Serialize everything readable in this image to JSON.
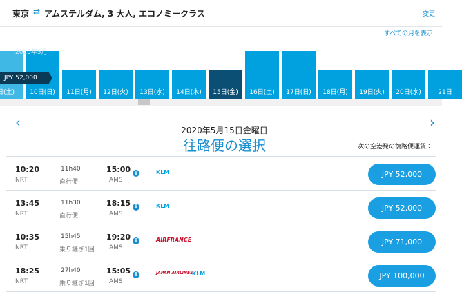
{
  "header": {
    "origin": "東京",
    "summary": "アムステルダム, 3 大人, エコノミークラス",
    "change": "変更"
  },
  "calendar": {
    "show_all_months": "すべての月を表示",
    "month_label": "2020年5月",
    "tooltip": "JPY 52,000",
    "days": [
      {
        "label": "日(土)",
        "tall": true,
        "selected": false
      },
      {
        "label": "10日(日)",
        "tall": true,
        "selected": false
      },
      {
        "label": "11日(月)",
        "tall": false,
        "selected": false
      },
      {
        "label": "12日(火)",
        "tall": false,
        "selected": false
      },
      {
        "label": "13日(水)",
        "tall": false,
        "selected": false
      },
      {
        "label": "14日(木)",
        "tall": false,
        "selected": false
      },
      {
        "label": "15日(金)",
        "tall": false,
        "selected": true
      },
      {
        "label": "16日(土)",
        "tall": true,
        "selected": false
      },
      {
        "label": "17日(日)",
        "tall": true,
        "selected": false
      },
      {
        "label": "18日(月)",
        "tall": false,
        "selected": false
      },
      {
        "label": "19日(火)",
        "tall": false,
        "selected": false
      },
      {
        "label": "20日(水)",
        "tall": false,
        "selected": false
      },
      {
        "label": "21日",
        "tall": false,
        "selected": false
      }
    ]
  },
  "selection": {
    "date": "2020年5月15日金曜日",
    "title": "往路便の選択",
    "note": "次の空港発の復路便運賃："
  },
  "flights": [
    {
      "dep_time": "10:20",
      "dep_airport": "NRT",
      "duration": "11h40",
      "stops": "直行便",
      "arr_time": "15:00",
      "arr_airport": "AMS",
      "airlines": [
        "KLM"
      ],
      "price": "JPY 52,000"
    },
    {
      "dep_time": "13:45",
      "dep_airport": "NRT",
      "duration": "11h30",
      "stops": "直行便",
      "arr_time": "18:15",
      "arr_airport": "AMS",
      "airlines": [
        "KLM"
      ],
      "price": "JPY 52,000"
    },
    {
      "dep_time": "10:35",
      "dep_airport": "NRT",
      "duration": "15h45",
      "stops": "乗り継ぎ1回",
      "arr_time": "19:20",
      "arr_airport": "AMS",
      "airlines": [
        "AIRFRANCE"
      ],
      "price": "JPY 71,000"
    },
    {
      "dep_time": "18:25",
      "dep_airport": "NRT",
      "duration": "27h40",
      "stops": "乗り継ぎ1回",
      "arr_time": "15:05",
      "arr_airport": "AMS",
      "airlines": [
        "JAPAN AIRLINES",
        "KLM"
      ],
      "price": "JPY 100,000"
    }
  ]
}
